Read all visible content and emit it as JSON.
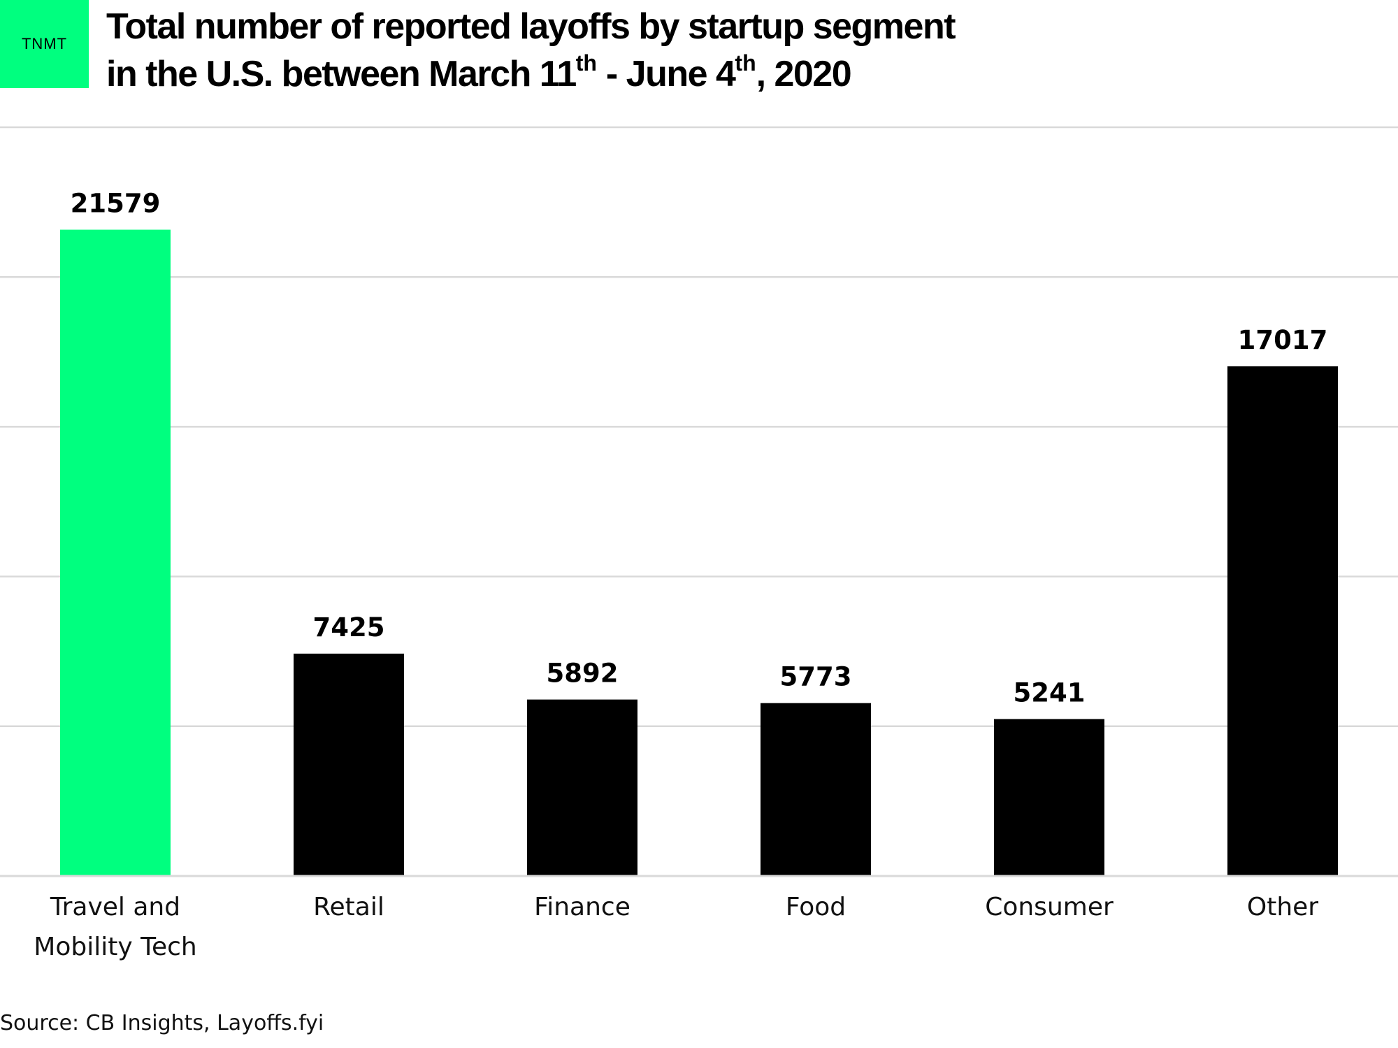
{
  "brand": {
    "logo_text": "TNMT",
    "accent_color": "#00ff7f"
  },
  "title": {
    "line1": "Total number of reported layoffs by startup segment",
    "line2_a": "in the U.S. between March 11",
    "sup_a": "th",
    "line2_b": " - June 4",
    "sup_b": "th",
    "line2_c": ", 2020"
  },
  "chart_data": {
    "type": "bar",
    "categories": [
      "Travel and Mobility Tech",
      "Retail",
      "Finance",
      "Food",
      "Consumer",
      "Other"
    ],
    "category_lines": [
      [
        "Travel and",
        "Mobility Tech"
      ],
      [
        "Retail"
      ],
      [
        "Finance"
      ],
      [
        "Food"
      ],
      [
        "Consumer"
      ],
      [
        "Other"
      ]
    ],
    "values": [
      21579,
      7425,
      5892,
      5773,
      5241,
      17017
    ],
    "bar_colors": [
      "#00ff7f",
      "#000000",
      "#000000",
      "#000000",
      "#000000",
      "#000000"
    ],
    "data_labels": [
      "21579",
      "7425",
      "5892",
      "5773",
      "5241",
      "17017"
    ],
    "ylim": [
      0,
      25000
    ],
    "grid": true,
    "gridline_values": [
      5000,
      10000,
      15000,
      20000,
      25000
    ],
    "y_tick_labels_shown": false,
    "grid_color": "#d9d9d9"
  },
  "source": "Source: CB Insights, Layoffs.fyi"
}
